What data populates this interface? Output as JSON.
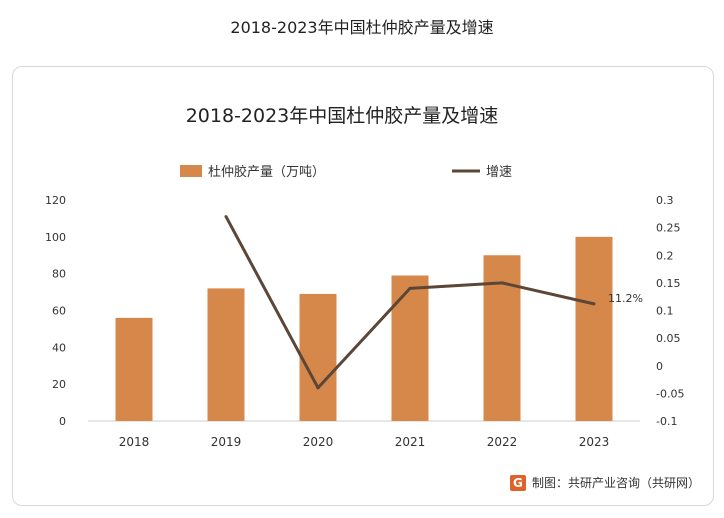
{
  "page_title": "2018-2023年中国杜仲胶产量及增速",
  "source_label": "制图：共研产业咨询（共研网）",
  "logo_glyph": "G",
  "colors": {
    "bar": "#D6884A",
    "line": "#5B4637",
    "text": "#333333",
    "grid": "#e4e4e4"
  },
  "chart_data": {
    "type": "bar",
    "title": "2018-2023年中国杜仲胶产量及增速",
    "categories": [
      "2018",
      "2019",
      "2020",
      "2021",
      "2022",
      "2023"
    ],
    "series": [
      {
        "name": "杜仲胶产量（万吨）",
        "type": "bar",
        "axis": "left",
        "values": [
          56,
          72,
          69,
          79,
          90,
          100
        ]
      },
      {
        "name": "增速",
        "type": "line",
        "axis": "right",
        "values": [
          null,
          0.27,
          -0.04,
          0.14,
          0.15,
          0.112
        ]
      }
    ],
    "data_labels": [
      {
        "series": 1,
        "index": 5,
        "text": "11.2%"
      }
    ],
    "y_left": {
      "min": 0,
      "max": 120,
      "ticks": [
        "0",
        "20",
        "40",
        "60",
        "80",
        "100",
        "120"
      ]
    },
    "y_right": {
      "min": -0.1,
      "max": 0.3,
      "ticks": [
        "-0.1",
        "-0.05",
        "0",
        "0.05",
        "0.1",
        "0.15",
        "0.2",
        "0.25",
        "0.3"
      ]
    },
    "legend_position": "top-center",
    "grid": false
  }
}
